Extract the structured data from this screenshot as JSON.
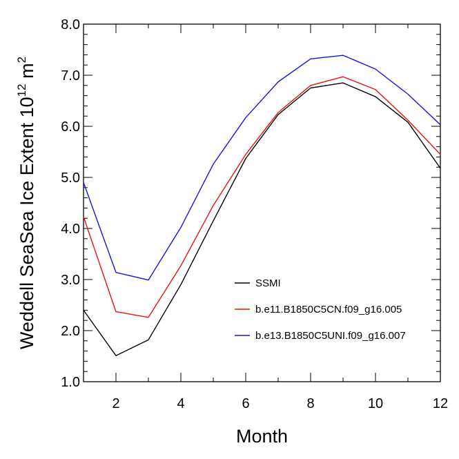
{
  "chart_data": {
    "type": "line",
    "title": "",
    "xlabel": "Month",
    "ylabel_main": "Weddell SeaSea Ice Extent 10",
    "ylabel_sup": "12",
    "ylabel_unit": " m",
    "ylabel_unit_sup": "2",
    "xlim": [
      1,
      12
    ],
    "ylim": [
      1.0,
      8.0
    ],
    "x_major_ticks": [
      2,
      4,
      6,
      8,
      10,
      12
    ],
    "x_tick_labels": [
      "2",
      "4",
      "6",
      "8",
      "10",
      "12"
    ],
    "x_minor_ticks": [
      1,
      3,
      5,
      7,
      9,
      11
    ],
    "y_major_ticks": [
      1.0,
      2.0,
      3.0,
      4.0,
      5.0,
      6.0,
      7.0,
      8.0
    ],
    "y_tick_labels": [
      "1.0",
      "2.0",
      "3.0",
      "4.0",
      "5.0",
      "6.0",
      "7.0",
      "8.0"
    ],
    "y_minor_ticks": [
      1.2,
      1.4,
      1.6,
      1.8,
      2.2,
      2.4,
      2.6,
      2.8,
      3.2,
      3.4,
      3.6,
      3.8,
      4.2,
      4.4,
      4.6,
      4.8,
      5.2,
      5.4,
      5.6,
      5.8,
      6.2,
      6.4,
      6.6,
      6.8,
      7.2,
      7.4,
      7.6,
      7.8
    ],
    "grid": false,
    "legend_position": "bottom-right",
    "x": [
      1,
      2,
      3,
      4,
      5,
      6,
      7,
      8,
      9,
      10,
      11,
      12
    ],
    "series": [
      {
        "name": "SSMI",
        "color": "#000000",
        "values": [
          2.4,
          1.51,
          1.82,
          2.9,
          4.15,
          5.37,
          6.23,
          6.75,
          6.85,
          6.58,
          6.08,
          5.18
        ]
      },
      {
        "name": "b.e11.B1850C5CN.f09_g16.005",
        "color": "#e8120c",
        "values": [
          4.23,
          2.37,
          2.26,
          3.27,
          4.45,
          5.45,
          6.27,
          6.8,
          6.97,
          6.72,
          6.12,
          5.45
        ]
      },
      {
        "name": "b.e13.B1850C5UNI.f09_g16.007",
        "color": "#1414e6",
        "values": [
          4.9,
          3.14,
          2.99,
          4.02,
          5.26,
          6.17,
          6.87,
          7.32,
          7.39,
          7.12,
          6.63,
          6.03
        ]
      }
    ]
  }
}
